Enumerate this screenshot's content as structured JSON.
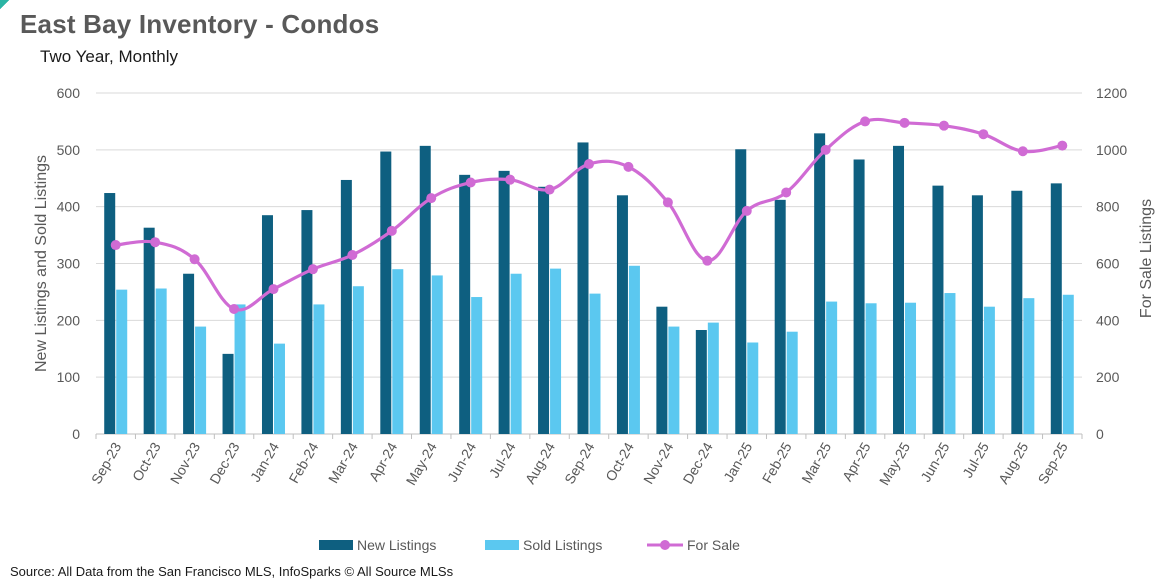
{
  "title": "East Bay Inventory - Condos",
  "subtitle": "Two Year, Monthly",
  "source": "Source: All Data from the San Francisco MLS, InfoSparks © All Source MLSs",
  "chart_data": {
    "type": "bar",
    "combo": "clustered-bar + line (secondary axis)",
    "categories": [
      "Sep-23",
      "Oct-23",
      "Nov-23",
      "Dec-23",
      "Jan-24",
      "Feb-24",
      "Mar-24",
      "Apr-24",
      "May-24",
      "Jun-24",
      "Jul-24",
      "Aug-24",
      "Sep-24",
      "Oct-24",
      "Nov-24",
      "Dec-24",
      "Jan-25",
      "Feb-25",
      "Mar-25",
      "Apr-25",
      "May-25",
      "Jun-25",
      "Jul-25",
      "Aug-25",
      "Sep-25"
    ],
    "series": [
      {
        "name": "New Listings",
        "type": "bar",
        "axis": "left",
        "color": "#0e5f80",
        "values": [
          424,
          363,
          282,
          141,
          385,
          394,
          447,
          497,
          507,
          456,
          463,
          435,
          513,
          420,
          224,
          183,
          501,
          412,
          529,
          483,
          507,
          437,
          420,
          428,
          441
        ]
      },
      {
        "name": "Sold Listings",
        "type": "bar",
        "axis": "left",
        "color": "#5bc8f0",
        "values": [
          254,
          256,
          189,
          228,
          159,
          228,
          260,
          290,
          279,
          241,
          282,
          291,
          247,
          296,
          189,
          196,
          161,
          180,
          233,
          230,
          231,
          248,
          224,
          239,
          245
        ]
      },
      {
        "name": "For Sale",
        "type": "line",
        "axis": "right",
        "color": "#d06bd4",
        "marker": "circle",
        "smooth": true,
        "values": [
          665,
          675,
          615,
          440,
          510,
          580,
          630,
          715,
          830,
          885,
          895,
          860,
          950,
          940,
          815,
          610,
          785,
          850,
          1000,
          1100,
          1095,
          1085,
          1055,
          995,
          1015
        ]
      }
    ],
    "ylabel": "New Listings and Sold Listings",
    "y2label": "For Sale Listings",
    "ylim": [
      0,
      600
    ],
    "y2lim": [
      0,
      1200
    ],
    "yticks": [
      "0",
      "100",
      "200",
      "300",
      "400",
      "500",
      "600"
    ],
    "y2ticks": [
      "0",
      "200",
      "400",
      "600",
      "800",
      "1000",
      "1200"
    ],
    "grid": "horizontal",
    "legend": "bottom-center"
  }
}
